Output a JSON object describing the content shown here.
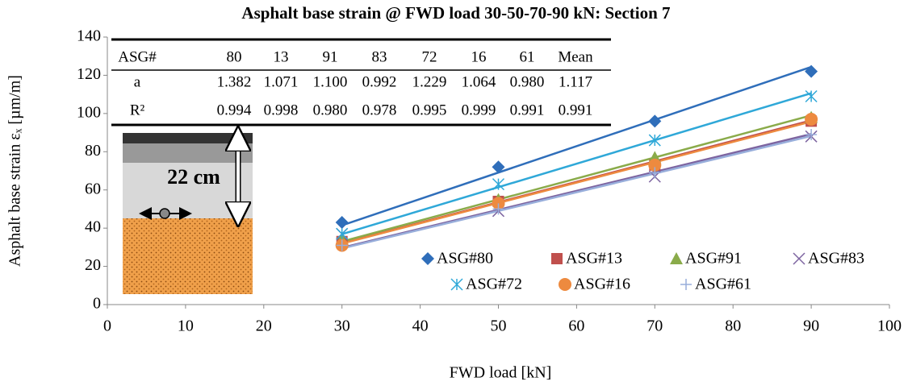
{
  "chart_data": {
    "type": "scatter",
    "title": "Asphalt base strain @ FWD load 30-50-70-90 kN: Section 7",
    "x_label": "FWD load [kN]",
    "y_label": "Asphalt base strain εₓ [µm/m]",
    "x": [
      30,
      50,
      70,
      90
    ],
    "xlim": [
      0,
      100
    ],
    "xticks": [
      0,
      10,
      20,
      30,
      40,
      50,
      60,
      70,
      80,
      90,
      100
    ],
    "ylim": [
      0,
      140
    ],
    "yticks": [
      0,
      20,
      40,
      60,
      80,
      100,
      120,
      140
    ],
    "grid": false,
    "series": [
      {
        "name": "ASG#80",
        "color": "#2f6eba",
        "marker": "diamond",
        "values": [
          43,
          72,
          96,
          122
        ]
      },
      {
        "name": "ASG#13",
        "color": "#c0504d",
        "marker": "square",
        "values": [
          33,
          54,
          73,
          96
        ]
      },
      {
        "name": "ASG#91",
        "color": "#8aab4a",
        "marker": "triangle",
        "values": [
          34,
          55,
          77,
          98
        ]
      },
      {
        "name": "ASG#83",
        "color": "#7d64a0",
        "marker": "x",
        "values": [
          37,
          49,
          67,
          88
        ]
      },
      {
        "name": "ASG#72",
        "color": "#2fa8d8",
        "marker": "star",
        "values": [
          37,
          63,
          86,
          109
        ]
      },
      {
        "name": "ASG#16",
        "color": "#ed8a3f",
        "marker": "circle",
        "values": [
          31,
          53,
          73,
          97
        ]
      },
      {
        "name": "ASG#61",
        "color": "#98aedb",
        "marker": "plus",
        "values": [
          31,
          50,
          69,
          89
        ]
      }
    ],
    "table": {
      "header": [
        "ASG#",
        "80",
        "13",
        "91",
        "83",
        "72",
        "16",
        "61",
        "Mean"
      ],
      "rows": [
        {
          "label": "a",
          "values": [
            {
              "value": 1.382,
              "label": "1.382"
            },
            {
              "value": 1.071,
              "label": "1.071"
            },
            {
              "value": 1.1,
              "label": "1.100"
            },
            {
              "value": 0.992,
              "label": "0.992"
            },
            {
              "value": 1.229,
              "label": "1.229"
            },
            {
              "value": 1.064,
              "label": "1.064"
            },
            {
              "value": 0.98,
              "label": "0.980"
            },
            {
              "value": 1.117,
              "label": "1.117"
            }
          ]
        },
        {
          "label": "R²",
          "values": [
            "0.994",
            "0.998",
            "0.980",
            "0.978",
            "0.995",
            "0.999",
            "0.991",
            "0.991"
          ]
        }
      ]
    },
    "diagram_label": "22 cm"
  }
}
